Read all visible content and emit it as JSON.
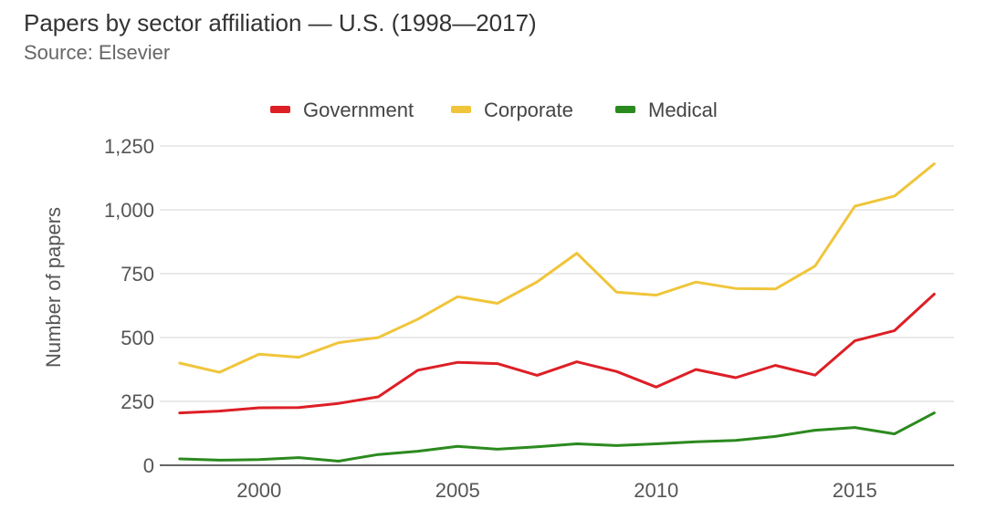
{
  "header": {
    "title": "Papers by sector affiliation — U.S. (1998—2017)",
    "subtitle": "Source: Elsevier"
  },
  "chart_data": {
    "type": "line",
    "title": "Papers by sector affiliation — U.S. (1998—2017)",
    "subtitle": "Source: Elsevier",
    "xlabel": "",
    "ylabel": "Number of papers",
    "xlim": [
      1998,
      2017
    ],
    "ylim": [
      0,
      1250
    ],
    "x_ticks": [
      2000,
      2005,
      2010,
      2015
    ],
    "x_tick_labels": [
      "2000",
      "2005",
      "2010",
      "2015"
    ],
    "y_ticks": [
      0,
      250,
      500,
      750,
      1000,
      1250
    ],
    "y_tick_labels": [
      "0",
      "250",
      "500",
      "750",
      "1,000",
      "1,250"
    ],
    "grid": true,
    "legend_position": "top-center",
    "x": [
      1998,
      1999,
      2000,
      2001,
      2002,
      2003,
      2004,
      2005,
      2006,
      2007,
      2008,
      2009,
      2010,
      2011,
      2012,
      2013,
      2014,
      2015,
      2016,
      2017
    ],
    "series": [
      {
        "name": "Government",
        "color": "#dd1f26",
        "values": [
          205,
          212,
          225,
          226,
          242,
          268,
          372,
          403,
          398,
          352,
          405,
          367,
          306,
          375,
          343,
          391,
          353,
          487,
          527,
          670
        ]
      },
      {
        "name": "Corporate",
        "color": "#f0c53a",
        "values": [
          400,
          364,
          435,
          423,
          480,
          500,
          572,
          660,
          634,
          718,
          830,
          678,
          666,
          717,
          692,
          690,
          780,
          1014,
          1054,
          1180
        ]
      },
      {
        "name": "Medical",
        "color": "#2b8a1e",
        "values": [
          25,
          20,
          22,
          30,
          16,
          42,
          55,
          74,
          63,
          72,
          84,
          77,
          84,
          92,
          97,
          113,
          137,
          148,
          123,
          205
        ]
      }
    ]
  }
}
